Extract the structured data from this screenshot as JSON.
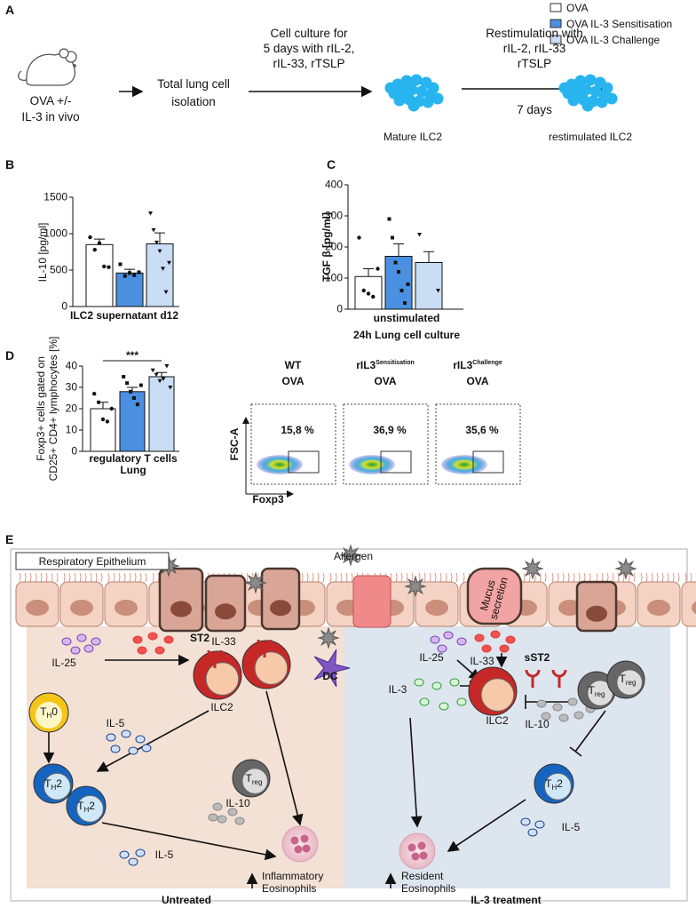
{
  "figure": {
    "panel_a": {
      "label": "A",
      "legend": [
        {
          "name": "OVA",
          "color": "#ffffff"
        },
        {
          "name": "OVA IL-3 Sensitisation",
          "color": "#4a8fe0"
        },
        {
          "name": "OVA IL-3 Challenge",
          "color": "#c9def5"
        }
      ],
      "mouse": [
        "OVA +/-",
        "IL-3 in vivo"
      ],
      "isolation": [
        "Total lung cell",
        "isolation"
      ],
      "culture": [
        "Cell culture for",
        "5 days with rIL-2,",
        "rIL-33, rTSLP"
      ],
      "mature": "Mature ILC2",
      "restimulation": [
        "Restimulation with",
        "rIL-2, rIL-33",
        "rTSLP"
      ],
      "days": "7 days",
      "restimulated": "restimulated ILC2"
    },
    "panel_b": {
      "label": "B",
      "type": "bar",
      "ylabel": "IL-10 [pg/ml]",
      "xlabel": "ILC2 supernatant d12",
      "values": [
        850,
        460,
        860
      ],
      "errors": [
        75,
        50,
        150
      ],
      "points": [
        [
          950,
          780,
          870,
          550,
          540
        ],
        [
          580,
          420,
          460,
          430,
          470
        ],
        [
          1280,
          1050,
          880,
          760,
          520,
          200,
          600
        ]
      ],
      "colors": [
        "#ffffff",
        "#4a8fe0",
        "#c9def5"
      ],
      "ylim": [
        0,
        1500
      ],
      "yticks": [
        0,
        500,
        1000,
        1500
      ]
    },
    "panel_c": {
      "label": "C",
      "type": "bar",
      "ylabel": "TGF β [pg/ml]",
      "xlabel": "unstimulated",
      "subtitle": "24h Lung cell culture",
      "values": [
        105,
        170,
        150
      ],
      "errors": [
        25,
        40,
        35
      ],
      "points": [
        [
          230,
          60,
          50,
          40,
          130
        ],
        [
          290,
          230,
          150,
          120,
          60,
          20,
          80
        ],
        [
          240,
          60
        ]
      ],
      "colors": [
        "#ffffff",
        "#4a8fe0",
        "#c9def5"
      ],
      "ylim": [
        0,
        400
      ],
      "yticks": [
        0,
        100,
        200,
        300,
        400
      ]
    },
    "panel_d": {
      "label": "D",
      "type": "bar",
      "ylabel": [
        "Foxp3+ cells gated on",
        "CD25+ CD4+ lymphocytes [%]"
      ],
      "xlabel": [
        "regulatory T cells",
        "Lung"
      ],
      "significance": "***",
      "values": [
        20,
        28,
        35
      ],
      "errors": [
        3,
        2,
        2
      ],
      "points": [
        [
          27,
          23,
          15,
          14,
          20
        ],
        [
          35,
          32,
          28,
          25,
          22,
          31
        ],
        [
          38,
          36,
          33,
          34,
          40,
          30
        ]
      ],
      "colors": [
        "#ffffff",
        "#4a8fe0",
        "#c9def5"
      ],
      "ylim": [
        0,
        40
      ],
      "yticks": [
        0,
        10,
        20,
        30,
        40
      ]
    },
    "flow": {
      "y_axis": "FSC-A",
      "x_axis": "Foxp3",
      "plots": [
        {
          "name": "WT",
          "sup": "",
          "group": "OVA",
          "percent": "15,8 %"
        },
        {
          "name": "rIL3",
          "sup": "Sensitisation",
          "group": "OVA",
          "percent": "36,9 %"
        },
        {
          "name": "rIL3",
          "sup": "Challenge",
          "group": "OVA",
          "percent": "35,6 %"
        }
      ]
    },
    "panel_e": {
      "label": "E",
      "epithelium": "Respiratory Epithelium",
      "allergen": "Allergen",
      "mucus": [
        "Mucus",
        "secretion"
      ],
      "left": {
        "title": "Untreated",
        "il25": "IL-25",
        "il33": "IL-33",
        "st2": "ST2",
        "ilc2": "ILC2",
        "dc": "DC",
        "th0": {
          "base": "T",
          "sub": "H",
          "tail": "0"
        },
        "il5a": "IL-5",
        "th2": {
          "base": "T",
          "sub": "H",
          "tail": "2"
        },
        "treg": {
          "base": "T",
          "sub": "reg"
        },
        "il10": "IL-10",
        "il5b": "IL-5",
        "eos": [
          "Inflammatory",
          "Eosinophils"
        ]
      },
      "right": {
        "title": "IL-3 treatment",
        "il25": "IL-25",
        "il33": "IL-33",
        "sst2": "sST2",
        "il3": "IL-3",
        "ilc2": "ILC2",
        "treg": {
          "base": "T",
          "sub": "reg"
        },
        "il10": "IL-10",
        "th2": {
          "base": "T",
          "sub": "H",
          "tail": "2"
        },
        "il5": "IL-5",
        "eos": [
          "Resident",
          "Eosinophils"
        ]
      }
    }
  }
}
